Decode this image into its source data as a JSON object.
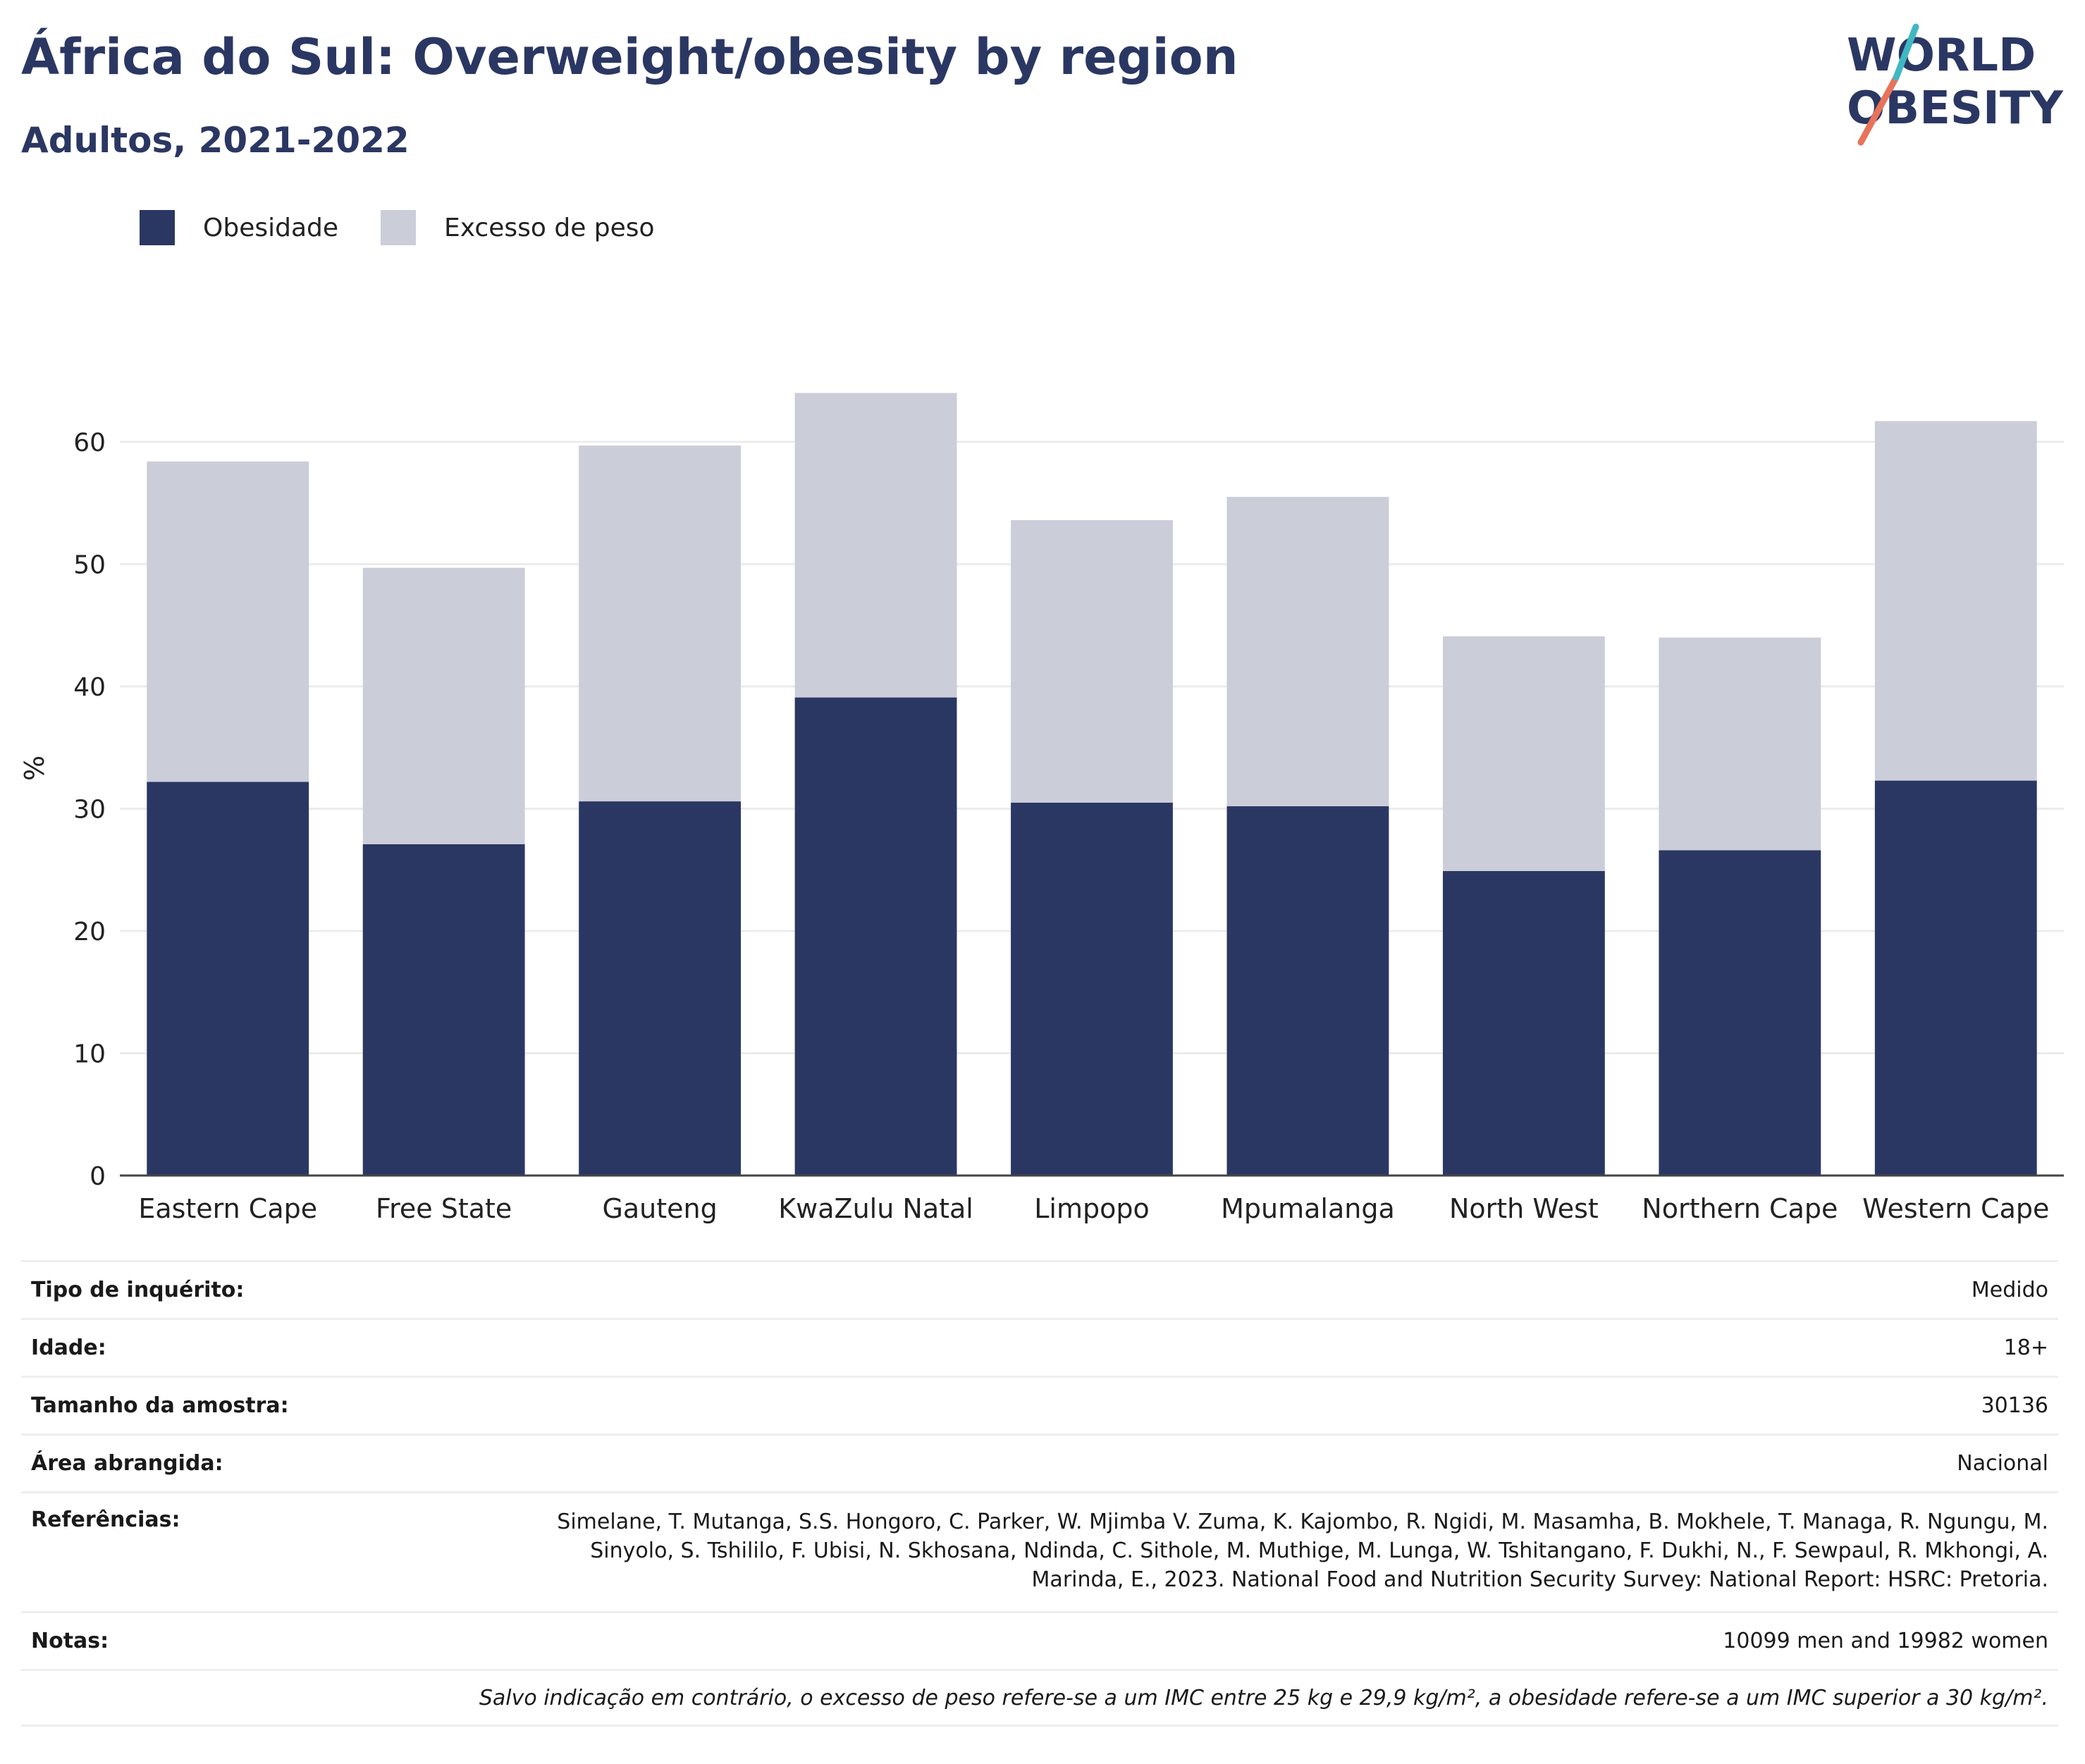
{
  "header": {
    "title": "África do Sul: Overweight/obesity by region",
    "subtitle": "Adultos, 2021-2022"
  },
  "logo": {
    "line1": "WORLD",
    "line2": "OBESITY",
    "colors": {
      "text": "#2b3763",
      "slash_red": "#e8735a",
      "slash_teal": "#3fb8c4"
    }
  },
  "chart_data": {
    "type": "bar",
    "stacked": true,
    "categories": [
      "Eastern Cape",
      "Free State",
      "Gauteng",
      "KwaZulu Natal",
      "Limpopo",
      "Mpumalanga",
      "North West",
      "Northern Cape",
      "Western Cape"
    ],
    "series": [
      {
        "name": "Obesidade",
        "color": "#2b3763",
        "values": [
          32.2,
          27.1,
          30.6,
          39.1,
          30.5,
          30.2,
          24.9,
          26.6,
          32.3
        ]
      },
      {
        "name": "Excesso de peso",
        "color": "#cbcdd9",
        "values": [
          26.2,
          22.6,
          29.1,
          24.9,
          23.1,
          25.3,
          19.2,
          17.4,
          29.4
        ]
      }
    ],
    "ylabel": "%",
    "xlabel": "",
    "yticks": [
      0,
      10,
      20,
      30,
      40,
      50,
      60
    ],
    "ylim": [
      0,
      70
    ],
    "grid": true,
    "legend": "top-left"
  },
  "info": {
    "survey_type": {
      "label": "Tipo de inquérito:",
      "value": "Medido"
    },
    "age": {
      "label": "Idade:",
      "value": "18+"
    },
    "sample_size": {
      "label": "Tamanho da amostra:",
      "value": "30136"
    },
    "area": {
      "label": "Área abrangida:",
      "value": "Nacional"
    },
    "references": {
      "label": "Referências:",
      "value": "Simelane, T. Mutanga, S.S. Hongoro, C. Parker, W. Mjimba V. Zuma, K. Kajombo, R. Ngidi, M. Masamha, B. Mokhele, T. Managa, R. Ngungu, M. Sinyolo, S. Tshililo, F. Ubisi, N. Skhosana, Ndinda, C. Sithole, M. Muthige, M. Lunga, W. Tshitangano, F. Dukhi, N., F. Sewpaul, R. Mkhongi, A. Marinda, E., 2023. National Food and Nutrition Security Survey: National Report: HSRC: Pretoria."
    },
    "notes": {
      "label": "Notas:",
      "value": "10099 men and 19982 women"
    },
    "footnote": "Salvo indicação em contrário, o excesso de peso refere-se a um IMC entre 25 kg e 29,9 kg/m², a obesidade refere-se a um IMC superior a 30 kg/m²."
  }
}
